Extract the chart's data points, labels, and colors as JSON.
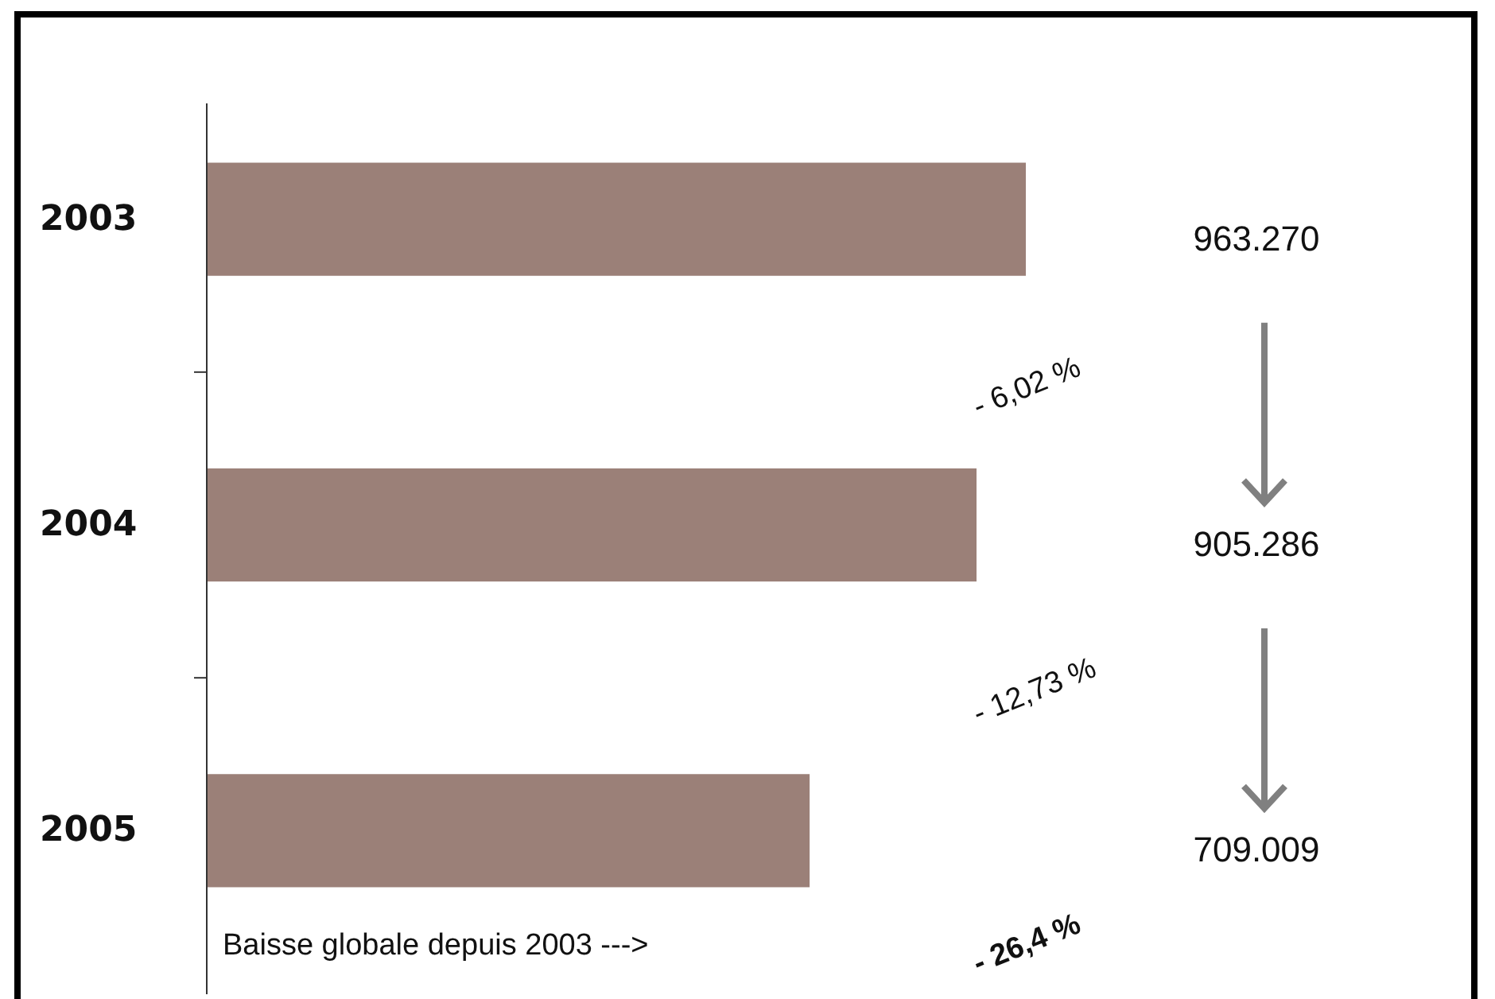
{
  "chart_data": {
    "type": "bar",
    "orientation": "horizontal",
    "categories": [
      "2003",
      "2004",
      "2005"
    ],
    "values": [
      963270,
      905286,
      709009
    ],
    "value_labels": [
      "963.270",
      "905.286",
      "709.009"
    ],
    "color": "#9b8078",
    "annotations": [
      "- 6,02 %",
      "- 12,73 %",
      "Baisse globale depuis 2003 --->",
      "- 26,4 %"
    ]
  }
}
